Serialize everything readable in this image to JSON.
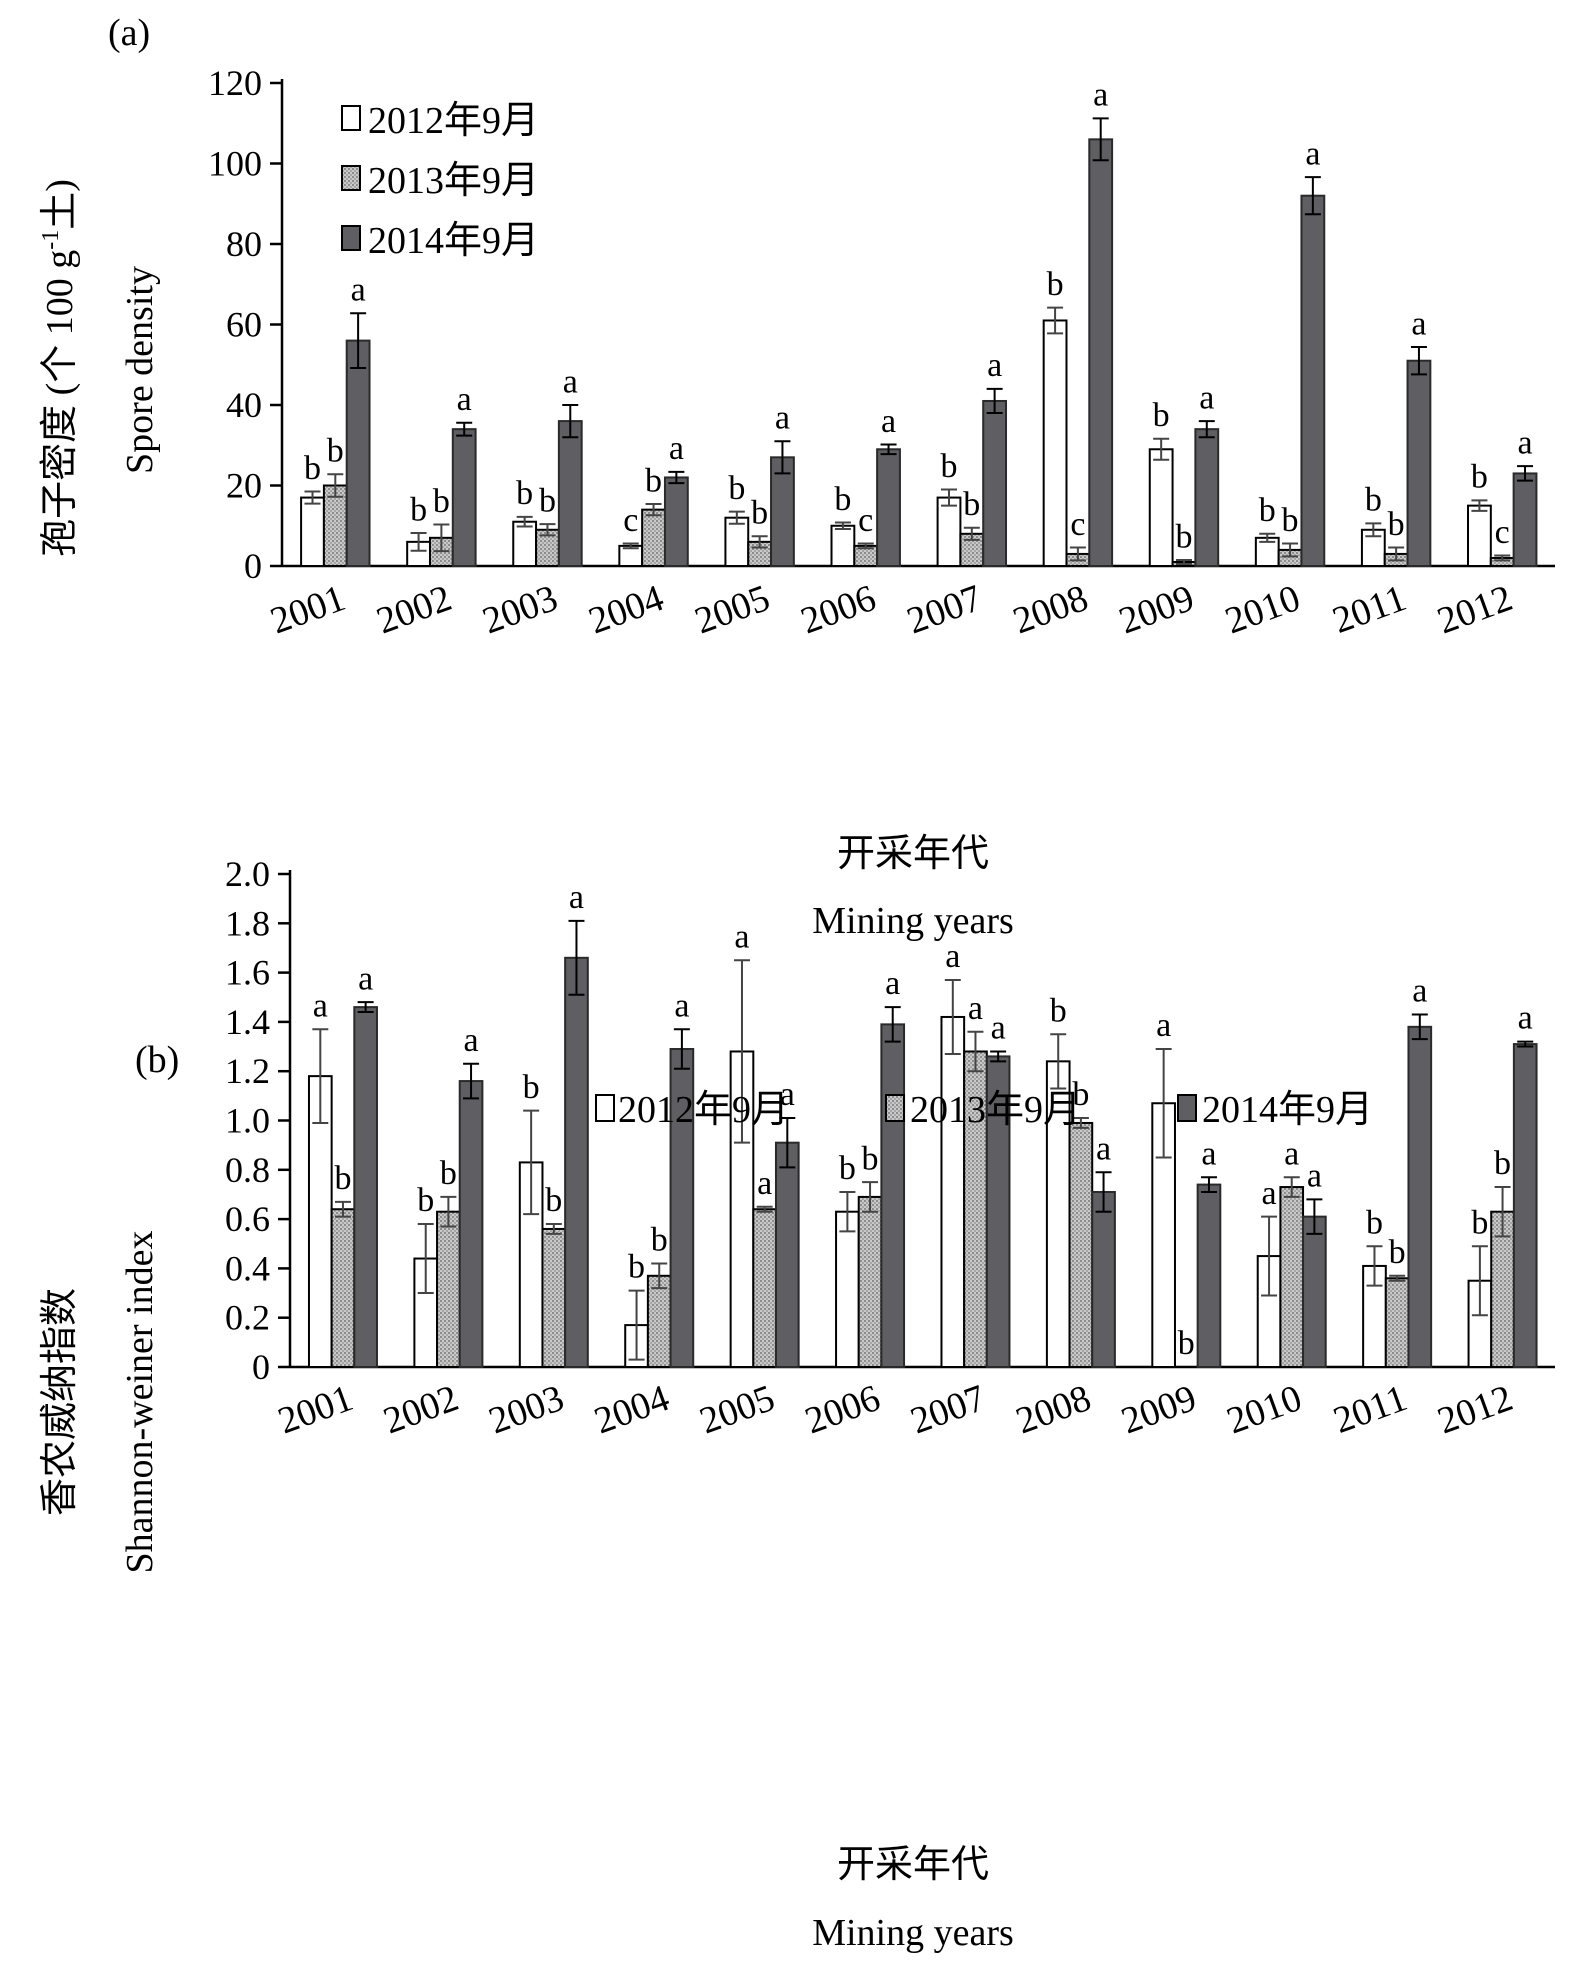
{
  "chart_data": [
    {
      "type": "bar",
      "panel_label": "(a)",
      "categories": [
        "2001",
        "2002",
        "2003",
        "2004",
        "2005",
        "2006",
        "2007",
        "2008",
        "2009",
        "2010",
        "2011",
        "2012"
      ],
      "series": [
        {
          "name": "2012年9月",
          "fill": "#ffffff",
          "values": [
            17,
            6,
            11,
            5,
            12,
            10,
            17,
            61,
            29,
            7,
            9,
            15
          ],
          "errors": [
            1.5,
            2.2,
            1.2,
            0.6,
            1.5,
            0.8,
            2,
            3.2,
            2.6,
            1,
            1.6,
            1.3
          ],
          "letters": [
            "b",
            "b",
            "b",
            "c",
            "b",
            "b",
            "b",
            "b",
            "b",
            "b",
            "b",
            "b"
          ]
        },
        {
          "name": "2013年9月",
          "fill": "#b9b9b9",
          "values": [
            20,
            7,
            9,
            14,
            6,
            5,
            8,
            3,
            1,
            4,
            3,
            2
          ],
          "errors": [
            2.8,
            3.3,
            1.4,
            1.4,
            1.4,
            0.6,
            1.5,
            1.6,
            0.5,
            1.6,
            1.6,
            0.6
          ],
          "letters": [
            "b",
            "b",
            "b",
            "b",
            "b",
            "c",
            "b",
            "c",
            "b",
            "b",
            "b",
            "c"
          ]
        },
        {
          "name": "2014年9月",
          "fill": "#5e5e63",
          "values": [
            56,
            34,
            36,
            22,
            27,
            29,
            41,
            106,
            34,
            92,
            51,
            23
          ],
          "errors": [
            6.8,
            1.6,
            4,
            1.4,
            4,
            1.2,
            3,
            5.2,
            2,
            4.6,
            3.4,
            1.8
          ],
          "letters": [
            "a",
            "a",
            "a",
            "a",
            "a",
            "a",
            "a",
            "a",
            "a",
            "a",
            "a",
            "a"
          ]
        }
      ],
      "ylabel_cn": "孢子密度 (个 100 g",
      "ylabel_sup": "-1",
      "ylabel_cn_end": "土)",
      "ylabel_en": "Spore density",
      "xlabel_cn": "开采年代",
      "xlabel_en": "Mining years",
      "ylim": [
        0,
        120
      ],
      "yticks": [
        "0",
        "20",
        "40",
        "60",
        "80",
        "100",
        "120"
      ],
      "legend": "top-left"
    },
    {
      "type": "bar",
      "panel_label": "(b)",
      "categories": [
        "2001",
        "2002",
        "2003",
        "2004",
        "2005",
        "2006",
        "2007",
        "2008",
        "2009",
        "2010",
        "2011",
        "2012"
      ],
      "series": [
        {
          "name": "2012年9月",
          "fill": "#ffffff",
          "values": [
            1.18,
            0.44,
            0.83,
            0.17,
            1.28,
            0.63,
            1.42,
            1.24,
            1.07,
            0.45,
            0.41,
            0.35
          ],
          "errors": [
            0.19,
            0.14,
            0.21,
            0.14,
            0.37,
            0.08,
            0.15,
            0.11,
            0.22,
            0.16,
            0.08,
            0.14
          ],
          "letters": [
            "a",
            "b",
            "b",
            "b",
            "a",
            "b",
            "a",
            "b",
            "a",
            "a",
            "b",
            "b"
          ]
        },
        {
          "name": "2013年9月",
          "fill": "#b9b9b9",
          "values": [
            0.64,
            0.63,
            0.56,
            0.37,
            0.64,
            0.69,
            1.28,
            0.99,
            0,
            0.73,
            0.36,
            0.63
          ],
          "errors": [
            0.03,
            0.06,
            0.02,
            0.05,
            0.01,
            0.06,
            0.08,
            0.02,
            0,
            0.04,
            0.01,
            0.1
          ],
          "letters": [
            "b",
            "b",
            "b",
            "b",
            "a",
            "b",
            "a",
            "b",
            "b",
            "a",
            "b",
            "b"
          ]
        },
        {
          "name": "2014年9月",
          "fill": "#5e5e63",
          "values": [
            1.46,
            1.16,
            1.66,
            1.29,
            0.91,
            1.39,
            1.26,
            0.71,
            0.74,
            0.61,
            1.38,
            1.31
          ],
          "errors": [
            0.02,
            0.07,
            0.15,
            0.08,
            0.1,
            0.07,
            0.02,
            0.08,
            0.03,
            0.07,
            0.05,
            0.01
          ],
          "letters": [
            "a",
            "a",
            "a",
            "a",
            "a",
            "a",
            "a",
            "a",
            "a",
            "a",
            "a",
            "a"
          ]
        }
      ],
      "ylabel_cn": "香农威纳指数",
      "ylabel_en": "Shannon-weiner index",
      "xlabel_cn": "开采年代",
      "xlabel_en": "Mining years",
      "ylim": [
        0,
        2.0
      ],
      "yticks": [
        "0",
        "0.2",
        "0.4",
        "0.6",
        "0.8",
        "1.0",
        "1.2",
        "1.4",
        "1.6",
        "1.8",
        "2.0"
      ],
      "legend": "top-right"
    }
  ]
}
